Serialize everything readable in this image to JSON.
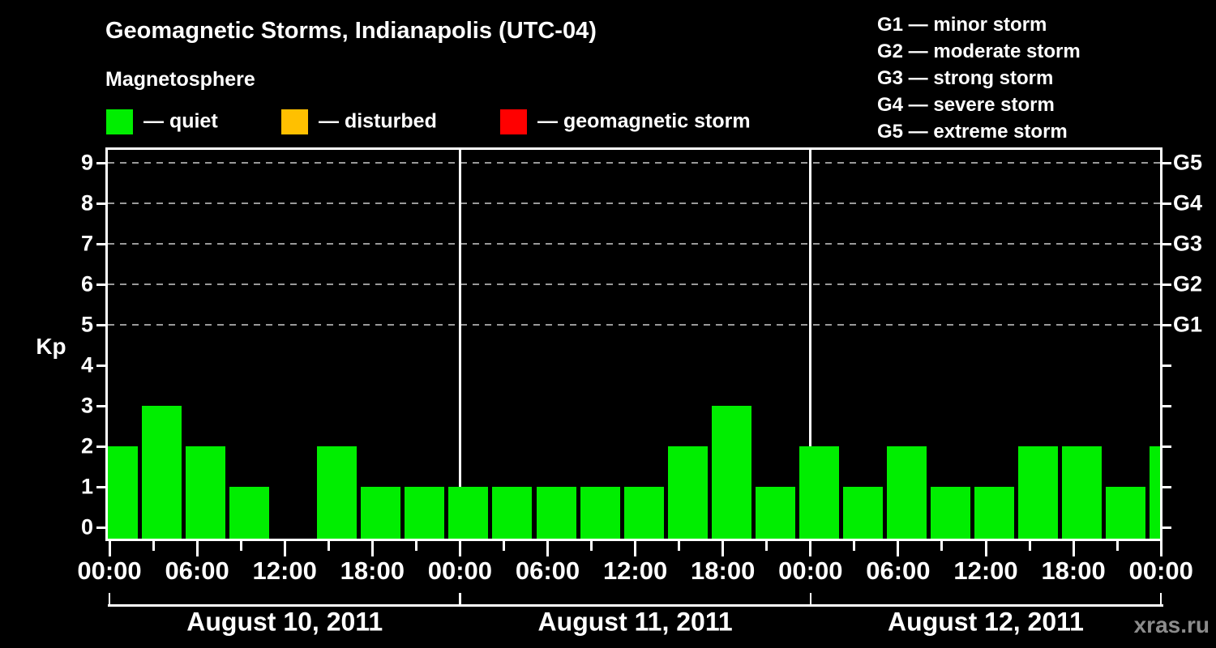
{
  "header": {
    "title": "Geomagnetic Storms, Indianapolis (UTC-04)",
    "subtitle": "Magnetosphere",
    "legend": {
      "items": [
        {
          "name": "quiet",
          "label": "— quiet",
          "color": "#00ee00"
        },
        {
          "name": "disturbed",
          "label": "— disturbed",
          "color": "#ffc000"
        },
        {
          "name": "geomagnetic-storm",
          "label": "— geomagnetic storm",
          "color": "#ff0000"
        }
      ]
    },
    "g_scale_legend": [
      "G1 — minor storm",
      "G2 — moderate storm",
      "G3 — strong storm",
      "G4 — severe storm",
      "G5 — extreme storm"
    ]
  },
  "watermark": "xras.ru",
  "chart_data": {
    "type": "bar",
    "title": "Geomagnetic Storms, Indianapolis (UTC-04)",
    "subtitle": "Magnetosphere",
    "ylabel": "Kp",
    "yticks": [
      0,
      1,
      2,
      3,
      4,
      5,
      6,
      7,
      8,
      9
    ],
    "ylim": [
      0,
      9.6
    ],
    "grid": "dashed horizontal gray lines at Kp 5,6,7,8,9 only",
    "legend_position": "top-left",
    "bar_color": "#00ee00",
    "background_color": "#000000",
    "interval_hours": 3,
    "x_tick_labels": [
      "00:00",
      "06:00",
      "12:00",
      "18:00",
      "00:00",
      "06:00",
      "12:00",
      "18:00",
      "00:00",
      "06:00",
      "12:00",
      "18:00",
      "00:00"
    ],
    "right_axis_labels": [
      {
        "label": "G1",
        "kp": 5
      },
      {
        "label": "G2",
        "kp": 6
      },
      {
        "label": "G3",
        "kp": 7
      },
      {
        "label": "G4",
        "kp": 8
      },
      {
        "label": "G5",
        "kp": 9
      }
    ],
    "days": [
      {
        "date": "August 10, 2011",
        "kp": [
          2,
          3,
          2,
          1,
          0,
          2,
          1,
          1
        ]
      },
      {
        "date": "August 11, 2011",
        "kp": [
          1,
          1,
          1,
          1,
          1,
          2,
          3,
          1
        ]
      },
      {
        "date": "August 12, 2011",
        "kp": [
          2,
          1,
          2,
          1,
          1,
          2,
          2,
          1
        ]
      }
    ],
    "partial_next_bar_kp": 2
  }
}
